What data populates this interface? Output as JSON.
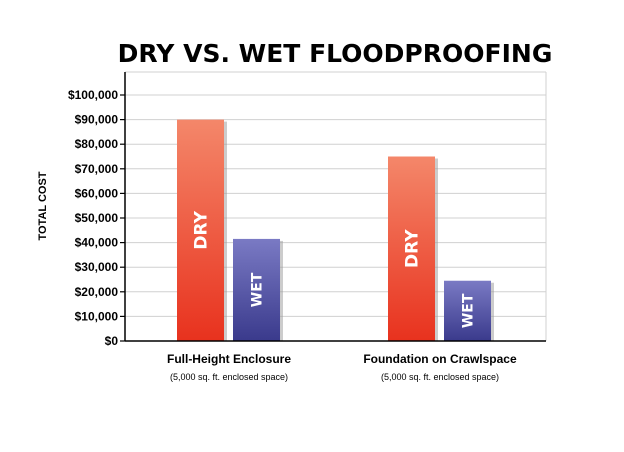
{
  "chart_data": {
    "type": "bar",
    "title": "DRY VS. WET FLOODPROOFING",
    "ylabel": "TOTAL COST",
    "xlabel": "",
    "ylim": [
      0,
      100000
    ],
    "yticks": [
      0,
      10000,
      20000,
      30000,
      40000,
      50000,
      60000,
      70000,
      80000,
      90000,
      100000
    ],
    "ytick_labels": [
      "$0",
      "$10,000",
      "$20,000",
      "$30,000",
      "$40,000",
      "$50,000",
      "$60,000",
      "$70,000",
      "$80,000",
      "$90,000",
      "$100,000"
    ],
    "grid": true,
    "categories": [
      "Full-Height Enclosure",
      "Foundation on Crawlspace"
    ],
    "category_notes": [
      "(5,000 sq. ft. enclosed space)",
      "(5,000 sq. ft. enclosed space)"
    ],
    "series": [
      {
        "name": "DRY",
        "values": [
          90000,
          75000
        ],
        "color": "#e8321e",
        "color_light": "#f4876a"
      },
      {
        "name": "WET",
        "values": [
          41500,
          24500
        ],
        "color": "#3a3a8c",
        "color_light": "#7a7ac4"
      }
    ]
  }
}
